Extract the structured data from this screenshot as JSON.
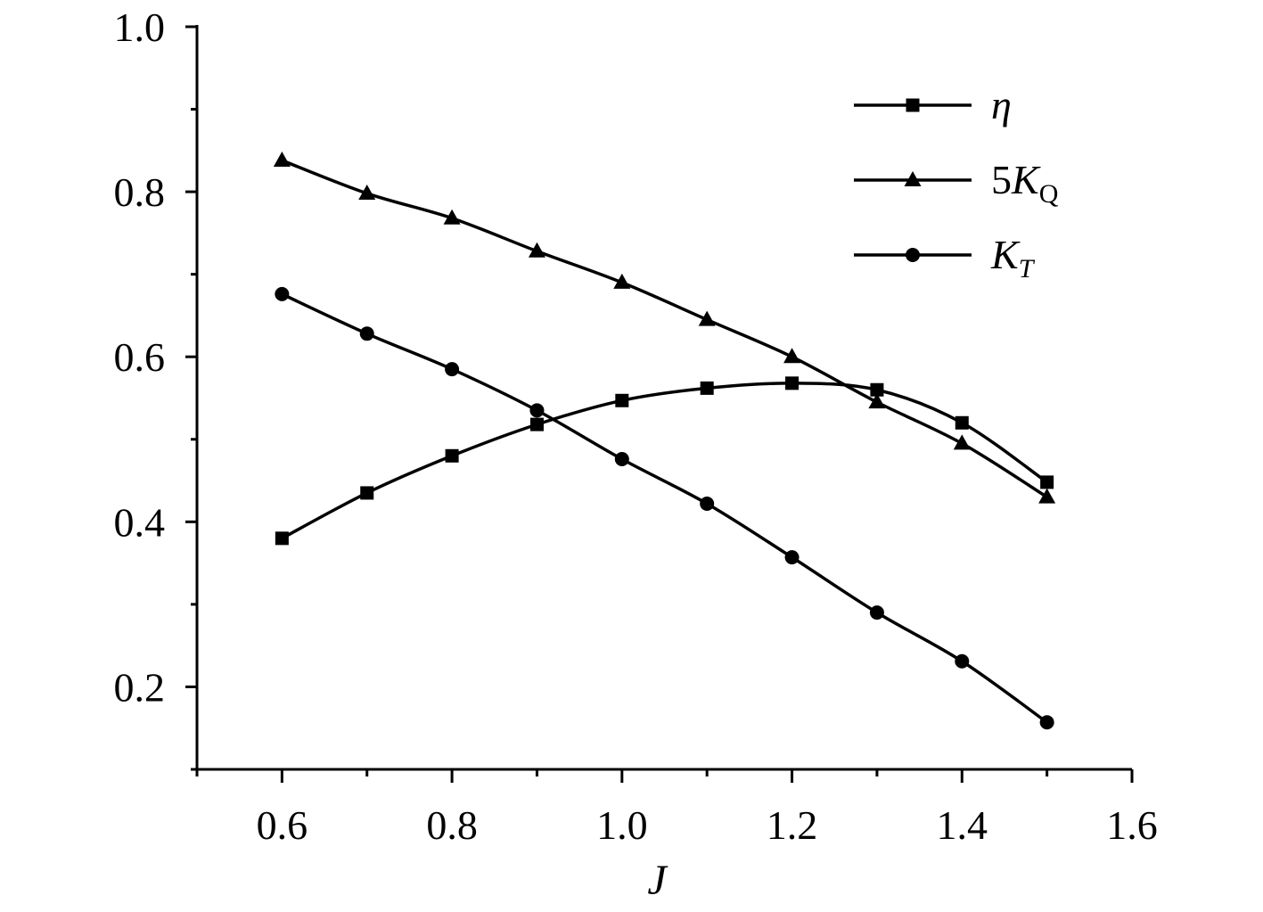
{
  "chart_data": {
    "type": "line",
    "xlabel": "J",
    "ylabel": "",
    "xlim": [
      0.5,
      1.6
    ],
    "ylim": [
      0.1,
      1.0
    ],
    "x_ticks": [
      0.6,
      0.8,
      1.0,
      1.2,
      1.4,
      1.6
    ],
    "x_tick_labels": [
      "0.6",
      "0.8",
      "1.0",
      "1.2",
      "1.4",
      "1.6"
    ],
    "y_ticks": [
      0.2,
      0.4,
      0.6,
      0.8,
      1.0
    ],
    "y_tick_labels": [
      "0.2",
      "0.4",
      "0.6",
      "0.8",
      "1.0"
    ],
    "x": [
      0.6,
      0.7,
      0.8,
      0.9,
      1.0,
      1.1,
      1.2,
      1.3,
      1.4,
      1.5
    ],
    "series": [
      {
        "name": "η",
        "marker": "square",
        "values": [
          0.38,
          0.435,
          0.48,
          0.518,
          0.547,
          0.562,
          0.568,
          0.56,
          0.52,
          0.448
        ]
      },
      {
        "name": "5K_Q",
        "name_main": "5K",
        "name_sub": "Q",
        "marker": "triangle",
        "values": [
          0.838,
          0.798,
          0.768,
          0.728,
          0.69,
          0.645,
          0.6,
          0.545,
          0.495,
          0.43
        ]
      },
      {
        "name": "K_T",
        "name_main": "K",
        "name_sub": "T",
        "marker": "circle",
        "values": [
          0.676,
          0.628,
          0.585,
          0.535,
          0.476,
          0.422,
          0.357,
          0.29,
          0.231,
          0.157
        ]
      }
    ],
    "legend": {
      "placement": "top-right"
    },
    "grid": false,
    "colors": {
      "line": "#000000",
      "marker": "#000000"
    }
  }
}
